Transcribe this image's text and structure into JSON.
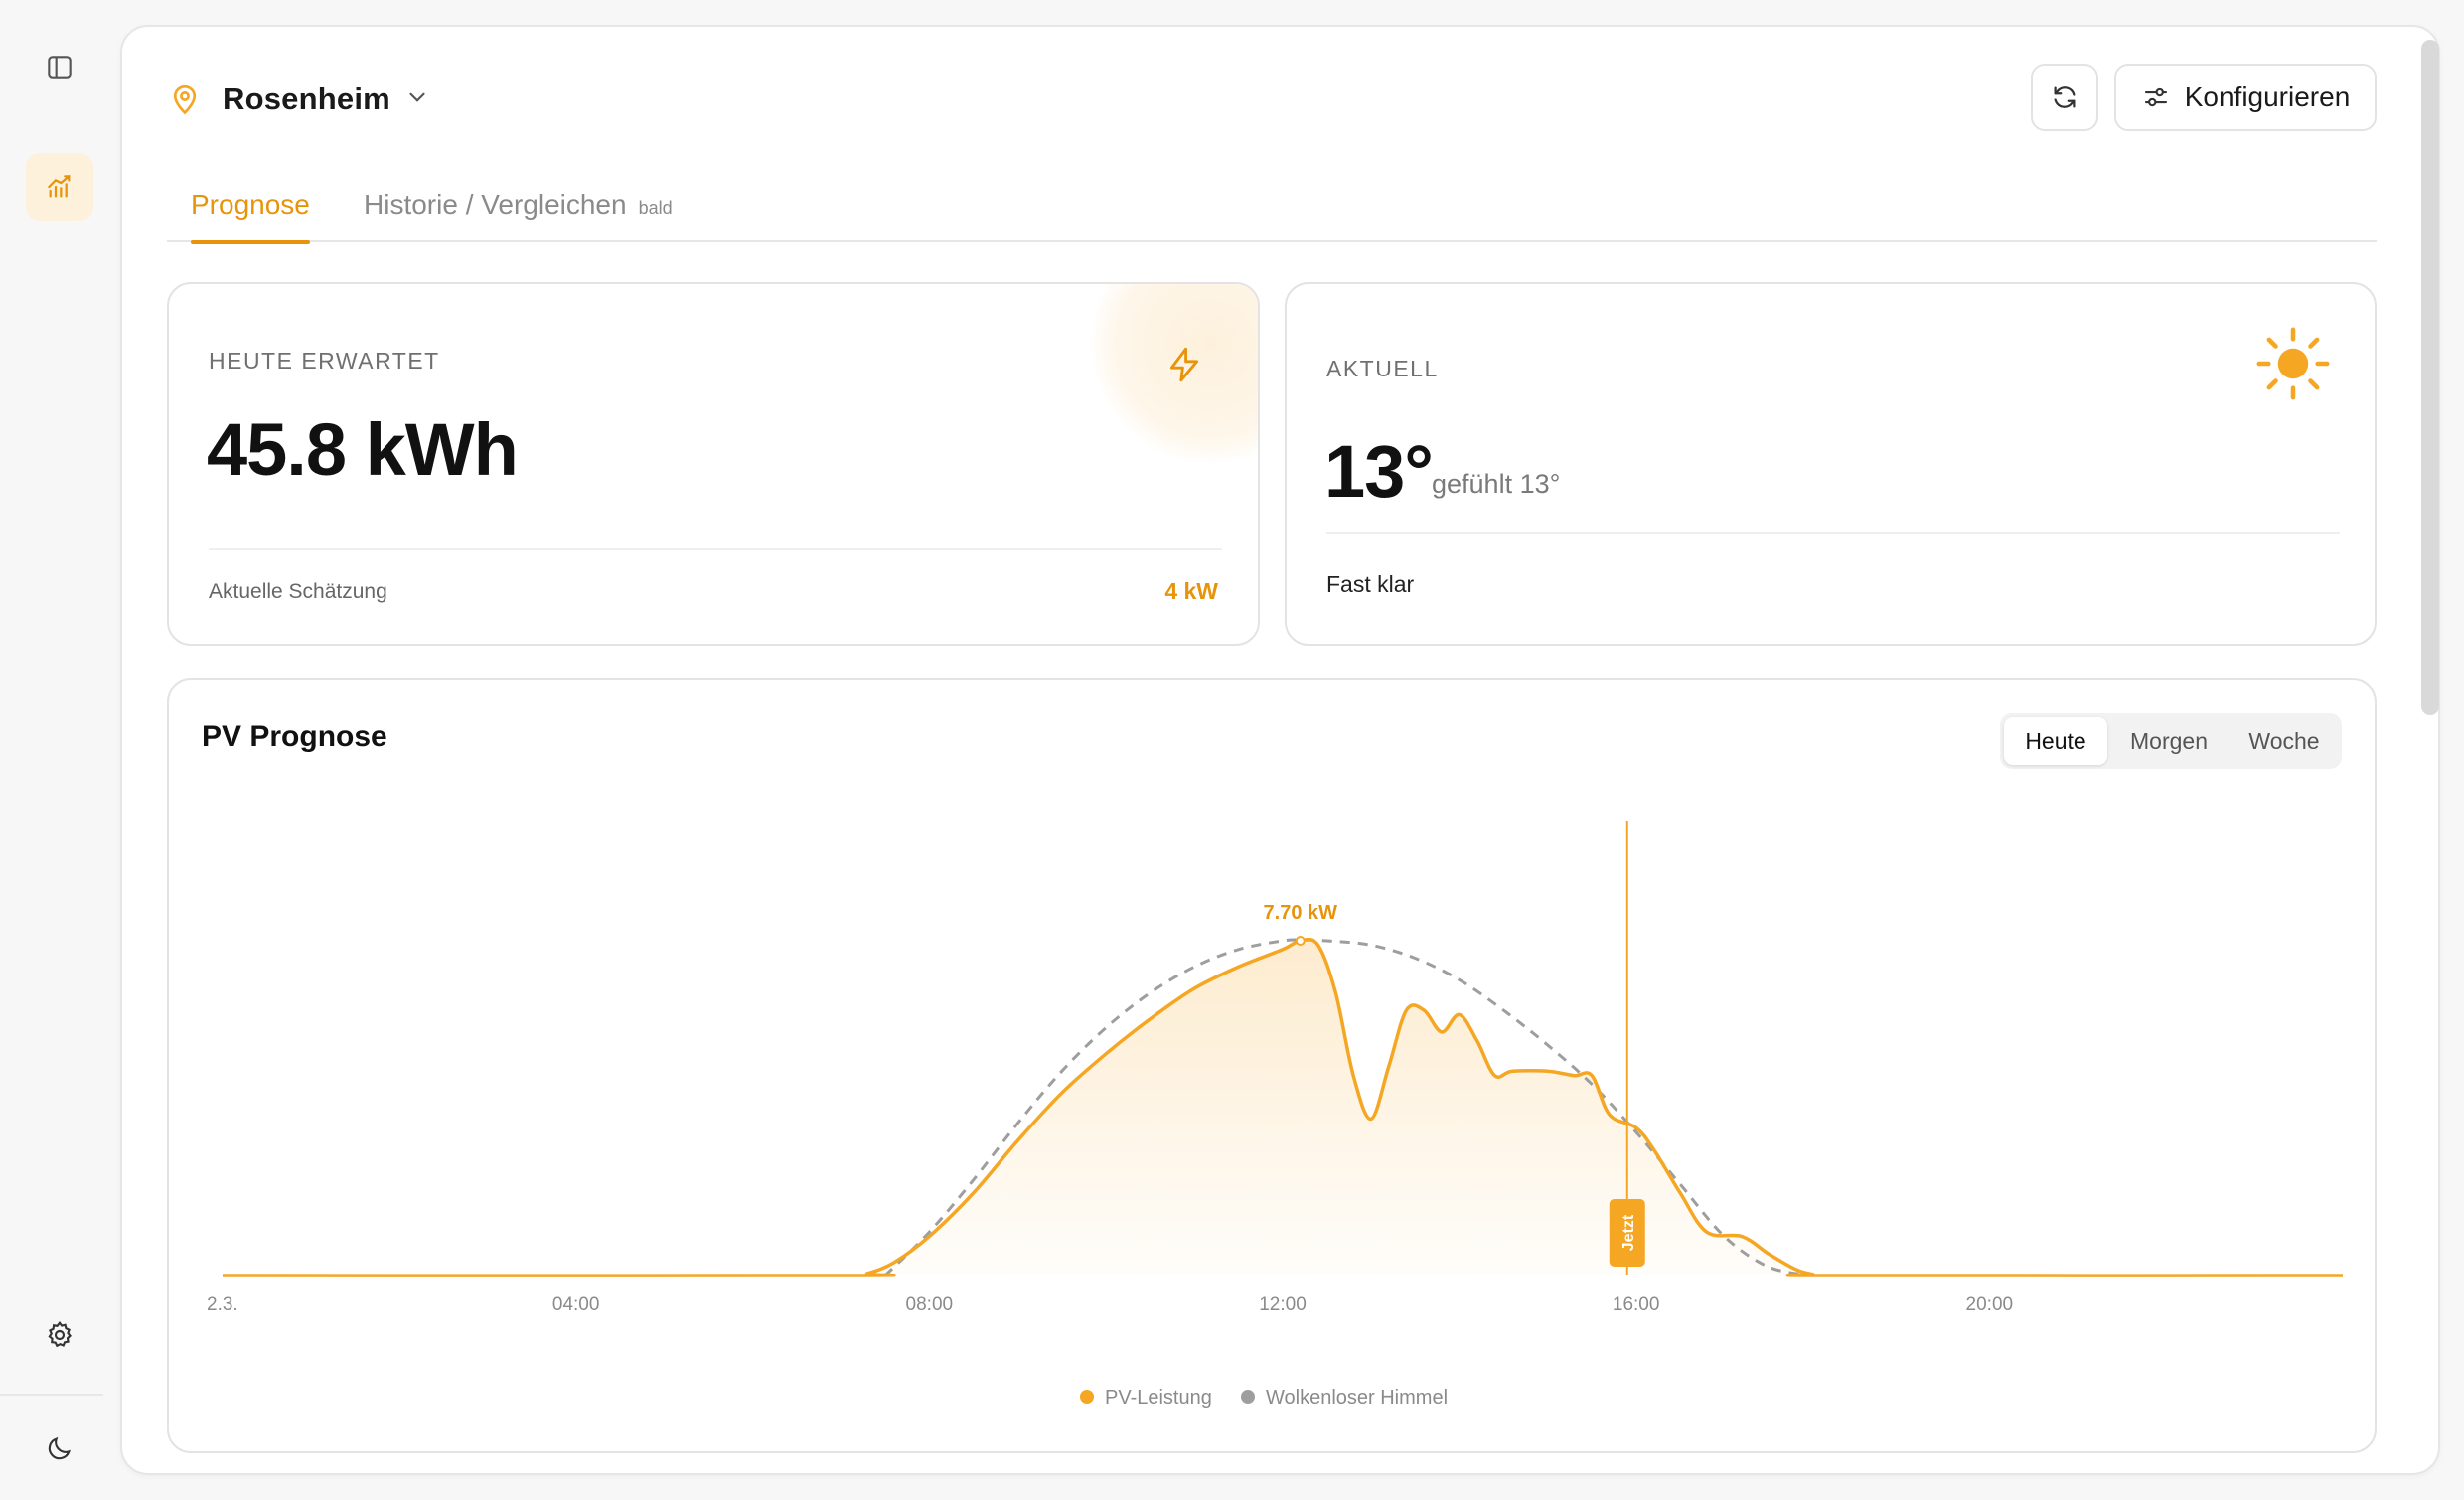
{
  "sidebar": {
    "items": [
      {
        "icon": "sidebar-toggle-icon"
      },
      {
        "icon": "chart-icon",
        "active": true
      },
      {
        "icon": "gear-icon"
      },
      {
        "icon": "moon-icon"
      }
    ]
  },
  "header": {
    "location": "Rosenheim",
    "configure_label": "Konfigurieren"
  },
  "tabs": [
    {
      "label": "Prognose",
      "active": true
    },
    {
      "label": "Historie / Vergleichen",
      "badge": "bald"
    }
  ],
  "expected_card": {
    "label": "HEUTE ERWARTET",
    "value": "45.8 kWh",
    "sub_label": "Aktuelle Schätzung",
    "sub_value": "4 kW"
  },
  "current_card": {
    "label": "AKTUELL",
    "temperature": "13°",
    "feels_like": "gefühlt 13°",
    "condition": "Fast klar"
  },
  "chart_card": {
    "title": "PV Prognose",
    "range_options": [
      "Heute",
      "Morgen",
      "Woche"
    ],
    "selected_range": "Heute"
  },
  "colors": {
    "accent": "#f5a623",
    "accent_text": "#e8940a",
    "clear_sky": "#9e9e9e"
  },
  "chart_data": {
    "type": "area",
    "x_unit": "hours",
    "xlim": [
      0,
      24
    ],
    "ylim": [
      0,
      8.5
    ],
    "tick_labels": [
      {
        "x": 0,
        "label": "2.3."
      },
      {
        "x": 4,
        "label": "04:00"
      },
      {
        "x": 8,
        "label": "08:00"
      },
      {
        "x": 12,
        "label": "12:00"
      },
      {
        "x": 16,
        "label": "16:00"
      },
      {
        "x": 20,
        "label": "20:00"
      }
    ],
    "now_x": 15.9,
    "now_label": "Jetzt",
    "peak": {
      "x": 12.2,
      "y": 7.7,
      "label": "7.70 kW"
    },
    "series": [
      {
        "name": "PV-Leistung",
        "color": "#f5a623",
        "points": [
          [
            0,
            0
          ],
          [
            7,
            0
          ],
          [
            7.3,
            0.05
          ],
          [
            7.6,
            0.3
          ],
          [
            8,
            0.9
          ],
          [
            8.5,
            1.9
          ],
          [
            9,
            3.1
          ],
          [
            9.5,
            4.2
          ],
          [
            10,
            5.1
          ],
          [
            10.5,
            5.9
          ],
          [
            11,
            6.6
          ],
          [
            11.5,
            7.1
          ],
          [
            12,
            7.5
          ],
          [
            12.2,
            7.7
          ],
          [
            12.4,
            7.6
          ],
          [
            12.6,
            6.5
          ],
          [
            12.8,
            4.6
          ],
          [
            13,
            3.6
          ],
          [
            13.2,
            4.8
          ],
          [
            13.4,
            6.1
          ],
          [
            13.6,
            6.1
          ],
          [
            13.8,
            5.6
          ],
          [
            14,
            6.0
          ],
          [
            14.2,
            5.4
          ],
          [
            14.4,
            4.6
          ],
          [
            14.6,
            4.7
          ],
          [
            15,
            4.7
          ],
          [
            15.3,
            4.6
          ],
          [
            15.5,
            4.6
          ],
          [
            15.7,
            3.7
          ],
          [
            16,
            3.4
          ],
          [
            16.2,
            2.9
          ],
          [
            16.5,
            1.9
          ],
          [
            16.8,
            1.0
          ],
          [
            17.2,
            0.9
          ],
          [
            17.5,
            0.5
          ],
          [
            17.8,
            0.15
          ],
          [
            18,
            0.03
          ],
          [
            18.2,
            0
          ],
          [
            24,
            0
          ]
        ]
      },
      {
        "name": "Wolkenloser Himmel",
        "color": "#9e9e9e",
        "points": [
          [
            7.5,
            0
          ],
          [
            8,
            1.0
          ],
          [
            8.5,
            2.2
          ],
          [
            9,
            3.5
          ],
          [
            9.5,
            4.7
          ],
          [
            10,
            5.7
          ],
          [
            10.5,
            6.5
          ],
          [
            11,
            7.1
          ],
          [
            11.5,
            7.5
          ],
          [
            12,
            7.7
          ],
          [
            12.2,
            7.72
          ],
          [
            12.5,
            7.7
          ],
          [
            13,
            7.6
          ],
          [
            13.5,
            7.3
          ],
          [
            14,
            6.8
          ],
          [
            14.5,
            6.1
          ],
          [
            15,
            5.3
          ],
          [
            15.5,
            4.4
          ],
          [
            16,
            3.3
          ],
          [
            16.5,
            2.1
          ],
          [
            17,
            0.9
          ],
          [
            17.5,
            0.2
          ],
          [
            18,
            0
          ]
        ]
      }
    ],
    "legend": [
      "PV-Leistung",
      "Wolkenloser Himmel"
    ],
    "legend_position": "bottom-center",
    "grid": false
  }
}
